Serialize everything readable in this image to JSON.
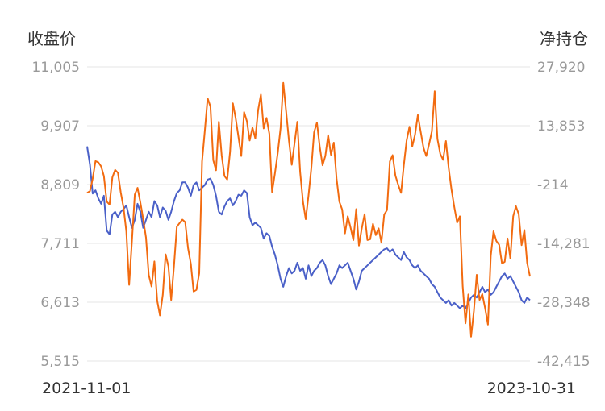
{
  "chart_data": {
    "type": "line",
    "y_left_label": "收盘价",
    "y_right_label": "净持仓",
    "x_start": "2021-11-01",
    "x_end": "2023-10-31",
    "y_left_ticks": [
      "11,005",
      "9,907",
      "8,809",
      "7,711",
      "6,613",
      "5,515"
    ],
    "y_right_ticks": [
      "27,920",
      "13,853",
      "-214",
      "-14,281",
      "-28,348",
      "-42,415"
    ],
    "y_left_range": [
      5515,
      11005
    ],
    "y_right_range": [
      -42415,
      27920
    ],
    "grid": true,
    "colors": {
      "close": "#4a60c8",
      "net": "#f26b10"
    },
    "series": [
      {
        "axis": "left",
        "color": "#4a60c8",
        "values": [
          9520,
          9180,
          8640,
          8700,
          8550,
          8450,
          8600,
          7950,
          7880,
          8250,
          8300,
          8200,
          8300,
          8350,
          8420,
          8200,
          8000,
          8150,
          8450,
          8300,
          8000,
          8150,
          8300,
          8200,
          8500,
          8420,
          8200,
          8380,
          8320,
          8150,
          8300,
          8500,
          8650,
          8700,
          8850,
          8850,
          8750,
          8600,
          8800,
          8850,
          8700,
          8750,
          8800,
          8900,
          8920,
          8800,
          8600,
          8300,
          8250,
          8400,
          8500,
          8550,
          8420,
          8500,
          8620,
          8600,
          8700,
          8650,
          8200,
          8050,
          8100,
          8050,
          8000,
          7800,
          7900,
          7850,
          7650,
          7500,
          7300,
          7050,
          6900,
          7100,
          7250,
          7150,
          7200,
          7350,
          7200,
          7250,
          7050,
          7300,
          7100,
          7200,
          7250,
          7350,
          7400,
          7300,
          7100,
          6950,
          7050,
          7150,
          7300,
          7250,
          7300,
          7350,
          7200,
          7050,
          6850,
          7000,
          7200,
          7250,
          7300,
          7350,
          7400,
          7450,
          7500,
          7550,
          7600,
          7620,
          7550,
          7600,
          7500,
          7450,
          7400,
          7550,
          7450,
          7400,
          7300,
          7250,
          7300,
          7200,
          7150,
          7100,
          7050,
          6950,
          6900,
          6800,
          6700,
          6650,
          6600,
          6650,
          6550,
          6600,
          6550,
          6500,
          6550,
          6500,
          6600,
          6700,
          6750,
          6700,
          6800,
          6900,
          6800,
          6850,
          6750,
          6800,
          6900,
          7000,
          7100,
          7150,
          7050,
          7100,
          7000,
          6900,
          6800,
          6650,
          6600,
          6700,
          6650
        ]
      },
      {
        "axis": "right",
        "color": "#f26b10",
        "values": [
          -2200,
          -1800,
          1200,
          5400,
          5100,
          4100,
          1800,
          -4300,
          -5000,
          1500,
          3300,
          2600,
          -2100,
          -5800,
          -11400,
          -24200,
          -13600,
          -2600,
          -1000,
          -4500,
          -8400,
          -12900,
          -21800,
          -24600,
          -18600,
          -28000,
          -31500,
          -26600,
          -16900,
          -19800,
          -27800,
          -19700,
          -10300,
          -9400,
          -8600,
          -9200,
          -15400,
          -19200,
          -25800,
          -25400,
          -21400,
          5300,
          12600,
          20400,
          18400,
          5600,
          3200,
          14800,
          6800,
          1800,
          1000,
          7600,
          19200,
          15600,
          11200,
          6600,
          17100,
          14900,
          10300,
          13400,
          10800,
          17600,
          21300,
          13200,
          15700,
          11900,
          -2000,
          2400,
          7300,
          13200,
          24100,
          17300,
          10300,
          4500,
          9600,
          14800,
          2800,
          -4300,
          -8500,
          -2800,
          3800,
          12300,
          14600,
          8800,
          4400,
          6600,
          11600,
          6900,
          9800,
          1300,
          -4300,
          -6200,
          -11900,
          -7800,
          -10500,
          -13500,
          -6100,
          -14800,
          -10700,
          -7300,
          -13500,
          -13300,
          -9600,
          -12300,
          -10700,
          -14100,
          -7400,
          -6300,
          5300,
          6800,
          1900,
          -300,
          -2200,
          4400,
          10300,
          13600,
          8900,
          11700,
          16400,
          12400,
          8600,
          6600,
          9400,
          12500,
          22100,
          10700,
          7100,
          5700,
          10200,
          3800,
          -1400,
          -5600,
          -9300,
          -7800,
          -24500,
          -33400,
          -26500,
          -36600,
          -30400,
          -21800,
          -27800,
          -26400,
          -29800,
          -33700,
          -17300,
          -11400,
          -13700,
          -14600,
          -19100,
          -18700,
          -13100,
          -17900,
          -7800,
          -5400,
          -7300,
          -14700,
          -11100,
          -18900,
          -22200
        ]
      }
    ]
  }
}
